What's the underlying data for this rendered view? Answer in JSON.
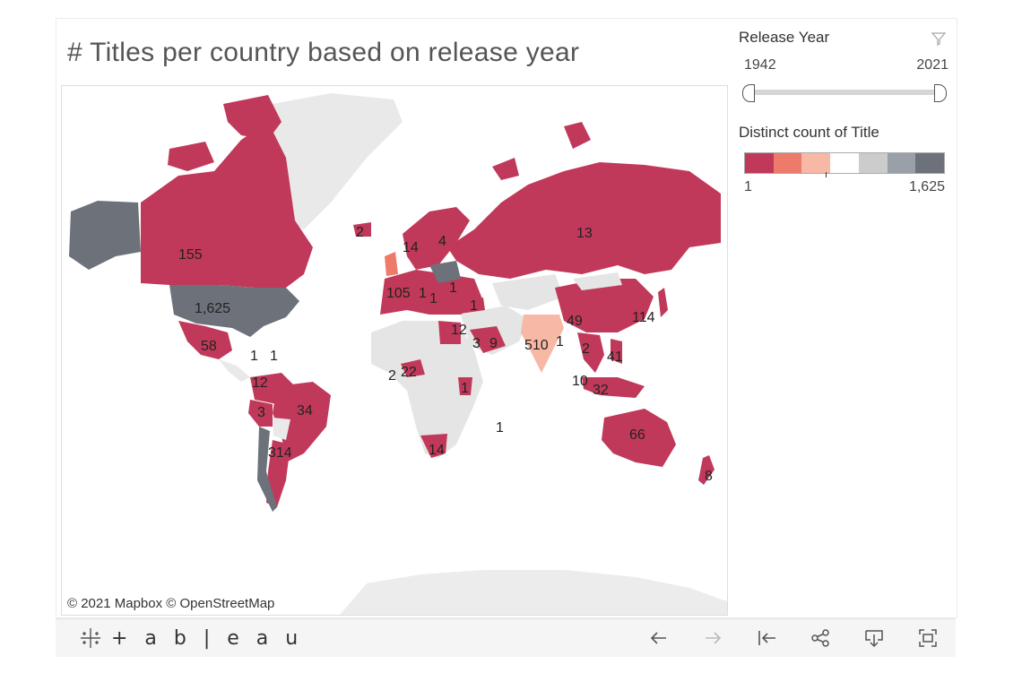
{
  "title": "# Titles per country based on release year",
  "attribution": "© 2021 Mapbox  © OpenStreetMap",
  "filter": {
    "title": "Release Year",
    "min": "1942",
    "max": "2021",
    "icon": "funnel-icon"
  },
  "legend": {
    "title": "Distinct count of Title",
    "min_label": "1",
    "max_label": "1,625",
    "colors": [
      "#c1395a",
      "#ee7a6a",
      "#f7b8a6",
      "#ffffff",
      "#cccccc",
      "#9aa0a7",
      "#6c717a"
    ]
  },
  "toolbar": {
    "logo_text": "+ a b | e a u",
    "buttons": [
      "undo-icon",
      "redo-icon",
      "revert-icon",
      "share-icon",
      "download-icon",
      "fullscreen-icon"
    ]
  },
  "map_labels": [
    {
      "country": "Canada",
      "value": "155"
    },
    {
      "country": "United States",
      "value": "1,625"
    },
    {
      "country": "Mexico",
      "value": "58"
    },
    {
      "country": "Cuba",
      "value": "1"
    },
    {
      "country": "Dominican Republic",
      "value": "1"
    },
    {
      "country": "Colombia",
      "value": "12"
    },
    {
      "country": "Peru",
      "value": "3"
    },
    {
      "country": "Brazil",
      "value": "34"
    },
    {
      "country": "Argentina",
      "value": "314"
    },
    {
      "country": "Iceland",
      "value": "2"
    },
    {
      "country": "Norway",
      "value": "14"
    },
    {
      "country": "Finland",
      "value": "4"
    },
    {
      "country": "Russia",
      "value": "13"
    },
    {
      "country": "France",
      "value": "105"
    },
    {
      "country": "Switzerland",
      "value": "1"
    },
    {
      "country": "Italy",
      "value": "1"
    },
    {
      "country": "Ukraine",
      "value": "1"
    },
    {
      "country": "Turkey",
      "value": "1"
    },
    {
      "country": "Egypt",
      "value": "12"
    },
    {
      "country": "Saudi Arabia",
      "value": "3"
    },
    {
      "country": "UAE",
      "value": "9"
    },
    {
      "country": "India",
      "value": "510"
    },
    {
      "country": "Bangladesh",
      "value": "1"
    },
    {
      "country": "China",
      "value": "49"
    },
    {
      "country": "Japan",
      "value": "114"
    },
    {
      "country": "Thailand",
      "value": "2"
    },
    {
      "country": "Philippines",
      "value": "41"
    },
    {
      "country": "Malaysia",
      "value": "10"
    },
    {
      "country": "Indonesia",
      "value": "32"
    },
    {
      "country": "Ghana",
      "value": "2"
    },
    {
      "country": "Nigeria",
      "value": "22"
    },
    {
      "country": "Kenya",
      "value": "1"
    },
    {
      "country": "Mauritius",
      "value": "1"
    },
    {
      "country": "South Africa",
      "value": "14"
    },
    {
      "country": "Australia",
      "value": "66"
    },
    {
      "country": "New Zealand",
      "value": "8"
    }
  ]
}
